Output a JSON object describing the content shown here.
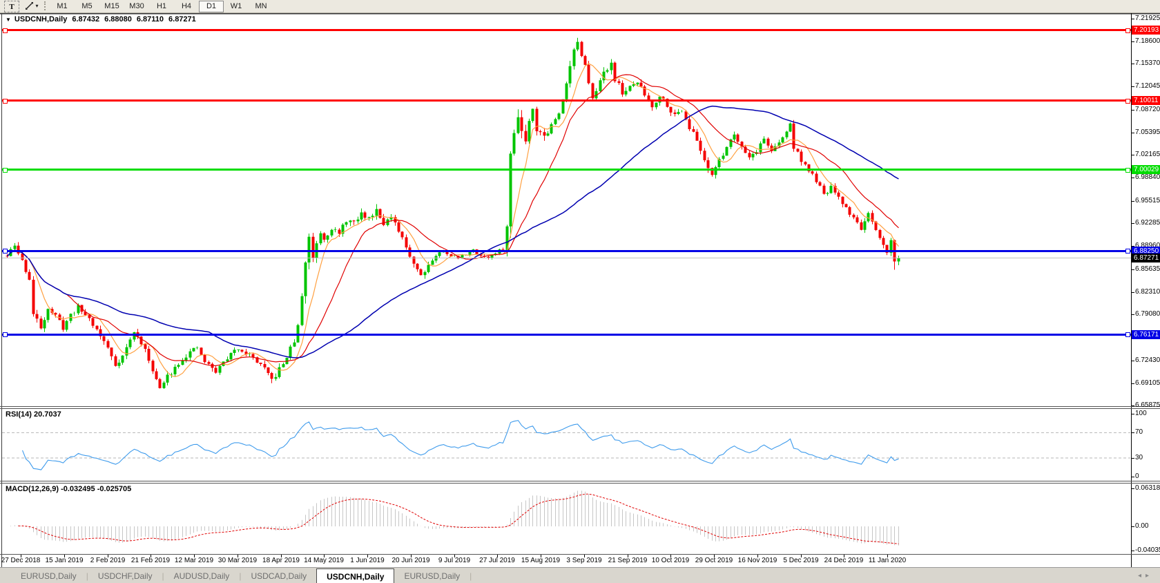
{
  "toolbar": {
    "text_tool_label": "T",
    "timeframes": [
      "M1",
      "M5",
      "M15",
      "M30",
      "H1",
      "H4",
      "D1",
      "W1",
      "MN"
    ],
    "active_timeframe": "D1"
  },
  "chart": {
    "symbol": "USDCNH,Daily",
    "open": "6.87432",
    "high": "6.88080",
    "low": "6.87110",
    "close": "6.87271"
  },
  "price_axis": {
    "ticks": [
      "7.21925",
      "7.18600",
      "7.15370",
      "7.12045",
      "7.08720",
      "7.05395",
      "7.02165",
      "6.98840",
      "6.95515",
      "6.92285",
      "6.88960",
      "6.85635",
      "6.82310",
      "6.79080",
      "6.75755",
      "6.72430",
      "6.69105",
      "6.65875"
    ],
    "current_price": "6.87271"
  },
  "levels": [
    {
      "value": "7.20193",
      "color": "#FF0000"
    },
    {
      "value": "7.10011",
      "color": "#FF0000"
    },
    {
      "value": "7.00029",
      "color": "#00DC00"
    },
    {
      "value": "6.88250",
      "color": "#0000E6"
    },
    {
      "value": "6.76171",
      "color": "#0000E6"
    }
  ],
  "current_price_line": {
    "value": "6.87271",
    "line_color": "#C0C0C0",
    "badge_color": "#000000"
  },
  "rsi_panel": {
    "label": "RSI(14)",
    "value": "20.7037",
    "ticks": [
      "100",
      "70",
      "30",
      "0"
    ],
    "guides": [
      70,
      30
    ],
    "line_color": "#3E9BEC"
  },
  "macd_panel": {
    "label": "MACD(12,26,9)",
    "value_macd": "-0.032495",
    "value_signal": "-0.025705",
    "ticks": [
      "0.063184",
      "0.00",
      "-0.04035"
    ],
    "bar_color": "#C6C6C6",
    "signal_color": "#E00000"
  },
  "x_axis": {
    "labels": [
      "27 Dec 2018",
      "15 Jan 2019",
      "2 Feb 2019",
      "21 Feb 2019",
      "12 Mar 2019",
      "30 Mar 2019",
      "18 Apr 2019",
      "14 May 2019",
      "1 Jun 2019",
      "20 Jun 2019",
      "9 Jul 2019",
      "27 Jul 2019",
      "15 Aug 2019",
      "3 Sep 2019",
      "21 Sep 2019",
      "10 Oct 2019",
      "29 Oct 2019",
      "16 Nov 2019",
      "5 Dec 2019",
      "24 Dec 2019",
      "11 Jan 2020"
    ]
  },
  "tabs": {
    "items": [
      {
        "label": "EURUSD,Daily",
        "active": false
      },
      {
        "label": "USDCHF,Daily",
        "active": false
      },
      {
        "label": "AUDUSD,Daily",
        "active": false
      },
      {
        "label": "USDCAD,Daily",
        "active": false
      },
      {
        "label": "USDCNH,Daily",
        "active": true
      },
      {
        "label": "EURUSD,Daily",
        "active": false
      }
    ]
  },
  "colors": {
    "bull": "#00C400",
    "bear": "#F40000",
    "ma_fast": "#FFA040",
    "ma_mid": "#E00000",
    "ma_slow": "#0000B0"
  },
  "chart_data": {
    "type": "candlestick",
    "symbol": "USDCNH",
    "timeframe": "Daily",
    "candle_count": 240,
    "y_axis_range": [
      6.65875,
      7.21925
    ],
    "levels": [
      7.20193,
      7.10011,
      7.00029,
      6.8825,
      6.76171
    ],
    "current_price": 6.87271,
    "last_ohlc": [
      6.87432,
      6.8808,
      6.8711,
      6.87271
    ],
    "indicators": {
      "sma_periods": [
        7,
        17,
        55
      ],
      "rsi": {
        "period": 14,
        "last": 20.7037
      },
      "macd": {
        "fast": 12,
        "slow": 26,
        "signal": 9,
        "last": [
          -0.032495,
          -0.025705
        ]
      }
    },
    "x_labels": [
      "27 Dec 2018",
      "15 Jan 2019",
      "2 Feb 2019",
      "21 Feb 2019",
      "12 Mar 2019",
      "30 Mar 2019",
      "18 Apr 2019",
      "14 May 2019",
      "1 Jun 2019",
      "20 Jun 2019",
      "9 Jul 2019",
      "27 Jul 2019",
      "15 Aug 2019",
      "3 Sep 2019",
      "21 Sep 2019",
      "10 Oct 2019",
      "29 Oct 2019",
      "16 Nov 2019",
      "5 Dec 2019",
      "24 Dec 2019",
      "11 Jan 2020"
    ],
    "price_waypoints": [
      [
        0,
        6.875,
        0.01
      ],
      [
        2,
        6.89,
        0.012
      ],
      [
        4,
        6.868,
        0.012
      ],
      [
        6,
        6.842,
        0.013
      ],
      [
        7,
        6.79,
        0.018
      ],
      [
        9,
        6.772,
        0.012
      ],
      [
        11,
        6.8,
        0.01
      ],
      [
        13,
        6.788,
        0.01
      ],
      [
        15,
        6.772,
        0.012
      ],
      [
        17,
        6.79,
        0.01
      ],
      [
        19,
        6.801,
        0.01
      ],
      [
        22,
        6.785,
        0.01
      ],
      [
        25,
        6.76,
        0.011
      ],
      [
        27,
        6.742,
        0.012
      ],
      [
        29,
        6.718,
        0.014
      ],
      [
        31,
        6.731,
        0.011
      ],
      [
        34,
        6.765,
        0.01
      ],
      [
        36,
        6.75,
        0.01
      ],
      [
        39,
        6.712,
        0.012
      ],
      [
        41,
        6.682,
        0.013
      ],
      [
        43,
        6.701,
        0.011
      ],
      [
        46,
        6.721,
        0.01
      ],
      [
        49,
        6.736,
        0.009
      ],
      [
        51,
        6.742,
        0.009
      ],
      [
        53,
        6.722,
        0.01
      ],
      [
        56,
        6.708,
        0.012
      ],
      [
        59,
        6.728,
        0.01
      ],
      [
        62,
        6.742,
        0.009
      ],
      [
        65,
        6.732,
        0.009
      ],
      [
        68,
        6.718,
        0.01
      ],
      [
        71,
        6.695,
        0.013
      ],
      [
        74,
        6.719,
        0.01
      ],
      [
        77,
        6.752,
        0.01
      ],
      [
        78,
        6.772,
        0.014
      ],
      [
        79,
        6.818,
        0.022
      ],
      [
        80,
        6.868,
        0.024
      ],
      [
        81,
        6.902,
        0.02
      ],
      [
        82,
        6.874,
        0.02
      ],
      [
        83,
        6.896,
        0.014
      ],
      [
        84,
        6.91,
        0.013
      ],
      [
        85,
        6.902,
        0.012
      ],
      [
        87,
        6.916,
        0.012
      ],
      [
        89,
        6.906,
        0.012
      ],
      [
        91,
        6.928,
        0.013
      ],
      [
        93,
        6.922,
        0.012
      ],
      [
        95,
        6.936,
        0.012
      ],
      [
        97,
        6.93,
        0.012
      ],
      [
        99,
        6.944,
        0.015
      ],
      [
        101,
        6.924,
        0.012
      ],
      [
        103,
        6.93,
        0.011
      ],
      [
        105,
        6.91,
        0.012
      ],
      [
        107,
        6.888,
        0.012
      ],
      [
        109,
        6.866,
        0.013
      ],
      [
        111,
        6.848,
        0.013
      ],
      [
        113,
        6.863,
        0.01
      ],
      [
        115,
        6.876,
        0.008
      ],
      [
        117,
        6.883,
        0.006
      ],
      [
        119,
        6.876,
        0.006
      ],
      [
        121,
        6.872,
        0.006
      ],
      [
        123,
        6.879,
        0.006
      ],
      [
        125,
        6.883,
        0.006
      ],
      [
        127,
        6.876,
        0.006
      ],
      [
        129,
        6.873,
        0.006
      ],
      [
        131,
        6.879,
        0.006
      ],
      [
        133,
        6.886,
        0.008
      ],
      [
        134,
        6.916,
        0.022
      ],
      [
        135,
        7.018,
        0.034
      ],
      [
        136,
        7.055,
        0.028
      ],
      [
        137,
        7.085,
        0.026
      ],
      [
        138,
        7.056,
        0.024
      ],
      [
        139,
        7.046,
        0.02
      ],
      [
        140,
        7.07,
        0.019
      ],
      [
        141,
        7.094,
        0.02
      ],
      [
        142,
        7.062,
        0.02
      ],
      [
        144,
        7.048,
        0.016
      ],
      [
        146,
        7.064,
        0.015
      ],
      [
        148,
        7.08,
        0.015
      ],
      [
        149,
        7.105,
        0.016
      ],
      [
        150,
        7.13,
        0.016
      ],
      [
        151,
        7.152,
        0.016
      ],
      [
        152,
        7.172,
        0.015
      ],
      [
        153,
        7.186,
        0.013
      ],
      [
        154,
        7.162,
        0.015
      ],
      [
        155,
        7.148,
        0.013
      ],
      [
        156,
        7.122,
        0.013
      ],
      [
        157,
        7.108,
        0.013
      ],
      [
        159,
        7.128,
        0.013
      ],
      [
        161,
        7.148,
        0.014
      ],
      [
        162,
        7.155,
        0.013
      ],
      [
        163,
        7.132,
        0.012
      ],
      [
        165,
        7.112,
        0.012
      ],
      [
        167,
        7.118,
        0.011
      ],
      [
        169,
        7.128,
        0.011
      ],
      [
        171,
        7.108,
        0.011
      ],
      [
        173,
        7.092,
        0.011
      ],
      [
        175,
        7.108,
        0.011
      ],
      [
        177,
        7.095,
        0.011
      ],
      [
        179,
        7.078,
        0.011
      ],
      [
        181,
        7.088,
        0.011
      ],
      [
        183,
        7.062,
        0.012
      ],
      [
        185,
        7.042,
        0.012
      ],
      [
        187,
        7.015,
        0.013
      ],
      [
        189,
        6.996,
        0.016
      ],
      [
        191,
        7.012,
        0.012
      ],
      [
        193,
        7.035,
        0.011
      ],
      [
        195,
        7.052,
        0.01
      ],
      [
        197,
        7.035,
        0.01
      ],
      [
        199,
        7.018,
        0.01
      ],
      [
        201,
        7.028,
        0.01
      ],
      [
        203,
        7.045,
        0.01
      ],
      [
        205,
        7.028,
        0.01
      ],
      [
        207,
        7.038,
        0.01
      ],
      [
        209,
        7.055,
        0.013
      ],
      [
        210,
        7.068,
        0.014
      ],
      [
        211,
        7.032,
        0.013
      ],
      [
        213,
        7.015,
        0.011
      ],
      [
        215,
        6.998,
        0.01
      ],
      [
        217,
        6.985,
        0.01
      ],
      [
        219,
        6.962,
        0.011
      ],
      [
        221,
        6.975,
        0.01
      ],
      [
        223,
        6.958,
        0.01
      ],
      [
        225,
        6.945,
        0.01
      ],
      [
        227,
        6.93,
        0.01
      ],
      [
        229,
        6.916,
        0.01
      ],
      [
        231,
        6.934,
        0.01
      ],
      [
        233,
        6.91,
        0.011
      ],
      [
        235,
        6.89,
        0.011
      ],
      [
        236,
        6.882,
        0.01
      ],
      [
        237,
        6.897,
        0.01
      ],
      [
        238,
        6.87,
        0.012
      ],
      [
        239,
        6.8727,
        0.008
      ]
    ]
  }
}
